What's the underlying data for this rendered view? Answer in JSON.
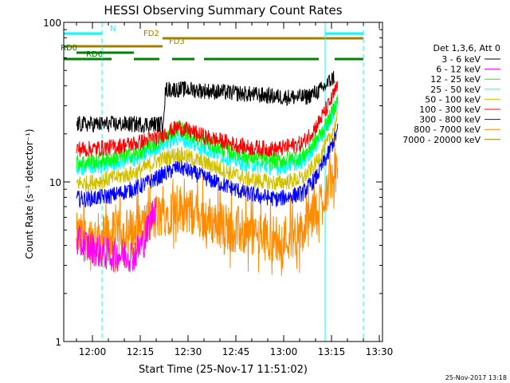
{
  "chart_data": {
    "type": "line",
    "title": "HESSI Observing Summary Count Rates",
    "xlabel": "Start Time (25-Nov-17 11:51:02)",
    "ylabel": "Count Rate (s⁻¹ detector⁻¹)",
    "xlim": [
      "11:51",
      "13:31"
    ],
    "ylim": [
      1,
      100
    ],
    "y_scale": "log",
    "x_ticks": [
      "12:00",
      "12:15",
      "12:30",
      "12:45",
      "13:00",
      "13:15",
      "13:30"
    ],
    "y_ticks": [
      "1",
      "10",
      "100"
    ],
    "legend_title": "Det 1,3,6, Att 0",
    "legend_position": "right",
    "timestamp": "25-Nov-2017 13:18",
    "series": [
      {
        "name": "3 - 6 keV",
        "color": "#000000",
        "x": [
          "11:51",
          "11:58",
          "12:13",
          "12:22",
          "12:23",
          "12:30",
          "12:45",
          "13:00",
          "13:07",
          "13:12",
          "13:16"
        ],
        "values": [
          23,
          23,
          23,
          23,
          38,
          38,
          36,
          34,
          34,
          38,
          46
        ]
      },
      {
        "name": "6 - 12 keV",
        "color": "#ff00ff",
        "x": [
          "11:51",
          "11:58",
          "12:05",
          "12:13",
          "12:16",
          "12:18",
          "12:20"
        ],
        "values": [
          4.6,
          4.0,
          3.5,
          3.5,
          4.2,
          5.5,
          7.5
        ]
      },
      {
        "name": "12 - 25 keV",
        "color": "#00ff00",
        "x": [
          "11:51",
          "11:58",
          "12:06",
          "12:14",
          "12:20",
          "12:27",
          "12:36",
          "12:48",
          "12:58",
          "13:06",
          "13:10",
          "13:14",
          "13:17"
        ],
        "values": [
          13.5,
          13.2,
          14.0,
          15.0,
          17.5,
          22.0,
          17.5,
          14.5,
          13.5,
          14.5,
          18,
          24,
          33
        ]
      },
      {
        "name": "25 - 50 keV",
        "color": "#00ffff",
        "x": [
          "11:51",
          "11:58",
          "12:06",
          "12:14",
          "12:20",
          "12:27",
          "12:36",
          "12:48",
          "12:58",
          "13:06",
          "13:10",
          "13:14",
          "13:17"
        ],
        "values": [
          12.5,
          12.3,
          13.0,
          14.0,
          16.5,
          19.0,
          16.0,
          13.0,
          12.3,
          13.5,
          17,
          23,
          32
        ]
      },
      {
        "name": "50 - 100 keV",
        "color": "#d0c000",
        "x": [
          "11:51",
          "11:58",
          "12:06",
          "12:14",
          "12:20",
          "12:27",
          "12:36",
          "12:48",
          "12:58",
          "13:06",
          "13:10",
          "13:14",
          "13:17"
        ],
        "values": [
          10.0,
          9.8,
          10.5,
          11.5,
          13.5,
          15.0,
          13.0,
          10.5,
          9.8,
          10.5,
          13,
          18,
          25
        ]
      },
      {
        "name": "100 - 300 keV",
        "color": "#ff0000",
        "x": [
          "11:51",
          "11:58",
          "12:06",
          "12:14",
          "12:20",
          "12:27",
          "12:36",
          "12:48",
          "12:58",
          "13:06",
          "13:10",
          "13:14",
          "13:17"
        ],
        "values": [
          16.5,
          16.0,
          16.5,
          17.5,
          19.0,
          22.0,
          19.0,
          16.5,
          16.0,
          17.5,
          22,
          30,
          40
        ]
      },
      {
        "name": "300 - 800 keV",
        "color": "#0000ff",
        "x": [
          "11:51",
          "11:58",
          "12:06",
          "12:14",
          "12:20",
          "12:27",
          "12:36",
          "12:48",
          "12:58",
          "13:06",
          "13:10",
          "13:14",
          "13:17"
        ],
        "values": [
          8.0,
          7.8,
          8.2,
          9.2,
          10.5,
          12.5,
          10.5,
          8.5,
          7.8,
          8.5,
          10.5,
          15,
          21
        ]
      },
      {
        "name": "800 - 7000 keV",
        "color": "#ff8c00",
        "x": [
          "11:51",
          "11:58",
          "12:06",
          "12:14",
          "12:20",
          "12:27",
          "12:36",
          "12:48",
          "12:58",
          "13:06",
          "13:10",
          "13:14",
          "13:17"
        ],
        "values": [
          4.6,
          4.5,
          4.6,
          5.0,
          6.0,
          7.0,
          5.8,
          4.8,
          4.4,
          4.8,
          6.5,
          9.5,
          12
        ]
      },
      {
        "name": "7000 - 20000 keV",
        "color": "#a08000",
        "x": [],
        "values": []
      }
    ],
    "flags": [
      {
        "name": "N",
        "color": "#00ffff",
        "segments": [
          [
            "11:51",
            "12:03"
          ],
          [
            "13:13",
            "13:25"
          ]
        ]
      },
      {
        "name": "FD2",
        "color": "#a08000",
        "segments": [
          [
            "12:22",
            "13:25"
          ]
        ]
      },
      {
        "name": "FD3",
        "color": "#a08000",
        "segments": [
          [
            "11:51",
            "12:22"
          ]
        ]
      },
      {
        "name": "RD0",
        "color": "#008000",
        "segments": [
          [
            "11:55",
            "12:13"
          ]
        ]
      },
      {
        "name": "RD6",
        "color": "#008000",
        "segments": [
          [
            "11:51",
            "12:06"
          ],
          [
            "12:13",
            "12:21"
          ],
          [
            "12:25",
            "12:32"
          ],
          [
            "12:35",
            "13:11"
          ],
          [
            "13:16",
            "13:25"
          ]
        ]
      }
    ],
    "vertical_markers": [
      {
        "x": "11:51",
        "color": "#00ffff",
        "style": "solid"
      },
      {
        "x": "12:03",
        "color": "#00ffff",
        "style": "dashed"
      },
      {
        "x": "13:13",
        "color": "#00ffff",
        "style": "solid"
      },
      {
        "x": "13:25",
        "color": "#00ffff",
        "style": "dashed"
      }
    ]
  }
}
